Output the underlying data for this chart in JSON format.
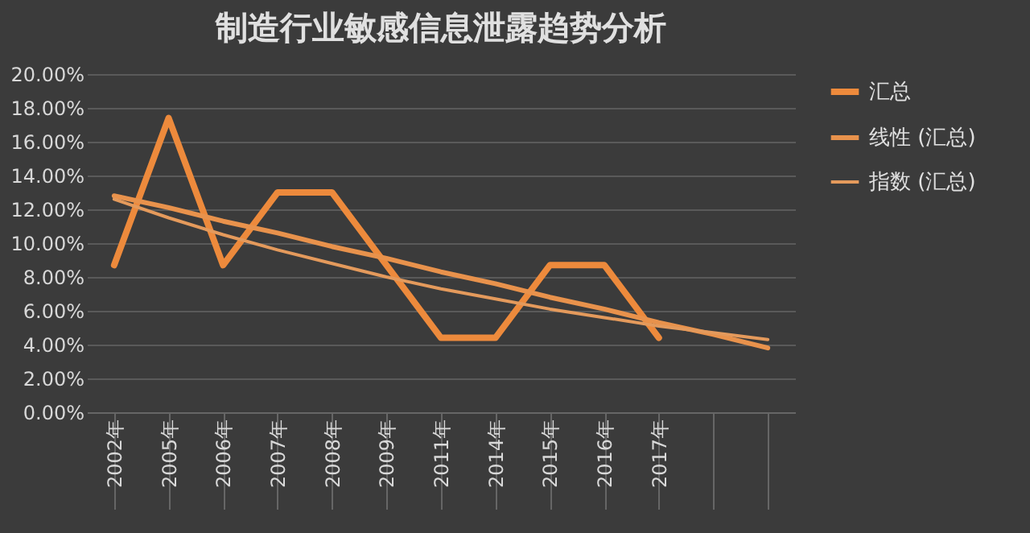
{
  "chart_data": {
    "type": "line",
    "title": "制造行业敏感信息泄露趋势分析",
    "categories": [
      "2002年",
      "2005年",
      "2006年",
      "2007年",
      "2008年",
      "2009年",
      "2011年",
      "2014年",
      "2015年",
      "2016年",
      "2017年",
      null,
      null
    ],
    "series": [
      {
        "name": "汇总",
        "color": "#ed8a3c",
        "values": [
          8.7,
          17.4,
          8.7,
          13.0,
          13.0,
          8.7,
          4.4,
          4.4,
          8.7,
          8.7,
          4.4,
          null,
          null
        ]
      },
      {
        "name": "线性 (汇总)",
        "color": "#e8924c",
        "values": [
          12.8,
          12.1,
          11.3,
          10.6,
          9.8,
          9.1,
          8.3,
          7.6,
          6.8,
          6.1,
          5.3,
          4.6,
          3.8
        ]
      },
      {
        "name": "指数 (汇总)",
        "color": "#e49a5c",
        "values": [
          12.6,
          11.5,
          10.5,
          9.6,
          8.8,
          8.0,
          7.3,
          6.7,
          6.1,
          5.6,
          5.1,
          4.7,
          4.3
        ]
      }
    ],
    "ylim": [
      0,
      20
    ],
    "yticks": [
      {
        "value": 0,
        "label": "0.00%"
      },
      {
        "value": 2,
        "label": "2.00%"
      },
      {
        "value": 4,
        "label": "4.00%"
      },
      {
        "value": 6,
        "label": "6.00%"
      },
      {
        "value": 8,
        "label": "8.00%"
      },
      {
        "value": 10,
        "label": "10.00%"
      },
      {
        "value": 12,
        "label": "12.00%"
      },
      {
        "value": 14,
        "label": "14.00%"
      },
      {
        "value": 16,
        "label": "16.00%"
      },
      {
        "value": 18,
        "label": "18.00%"
      },
      {
        "value": 20,
        "label": "20.00%"
      }
    ],
    "grid": "y",
    "legend": "right",
    "marker": "none",
    "line_style": "solid"
  }
}
